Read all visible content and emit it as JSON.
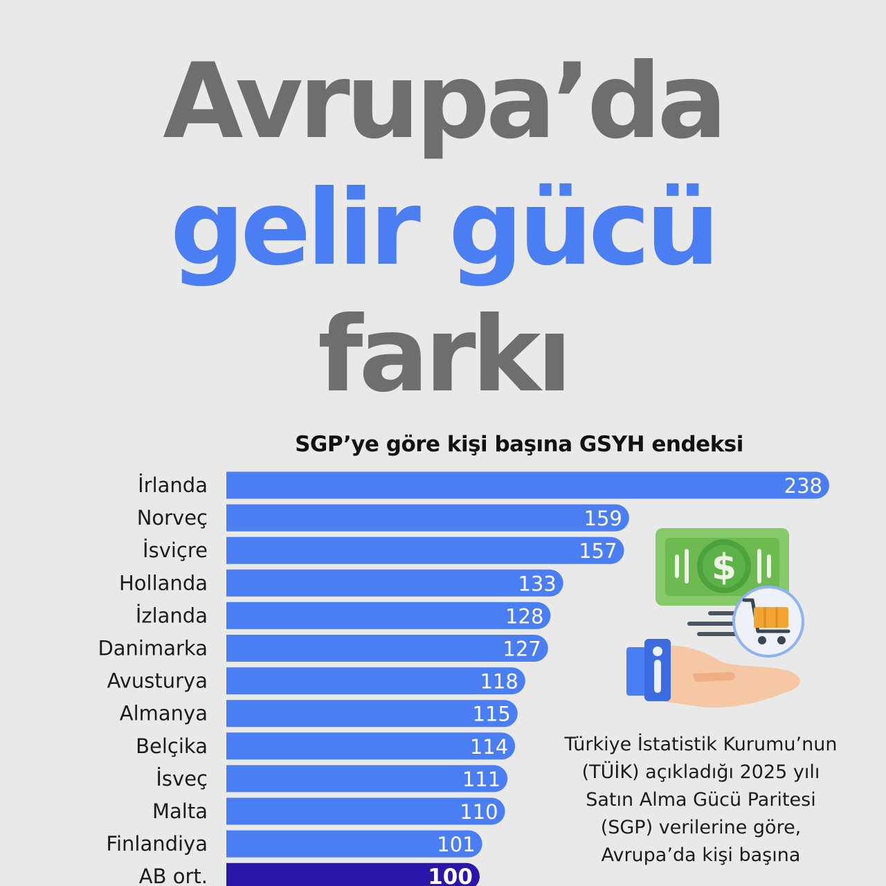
{
  "headline": {
    "line1": "Avrupa’da",
    "line2": "gelir gücü",
    "line3": "farkı"
  },
  "colors": {
    "bar": "#4a7ef2",
    "highlight_bar": "#2a16a8",
    "title_gray": "#6e6e6e",
    "title_blue": "#4a7ef2",
    "background": "#e9e9e9"
  },
  "chart_data": {
    "type": "bar",
    "orientation": "horizontal",
    "title": "SGP’ye göre kişi başına GSYH endeksi",
    "categories": [
      "İrlanda",
      "Norveç",
      "İsviçre",
      "Hollanda",
      "İzlanda",
      "Danimarka",
      "Avusturya",
      "Almanya",
      "Belçika",
      "İsveç",
      "Malta",
      "Finlandiya",
      "AB ort."
    ],
    "values": [
      238,
      159,
      157,
      133,
      128,
      127,
      118,
      115,
      114,
      111,
      110,
      101,
      100
    ],
    "highlight": "AB ort.",
    "xlim": [
      0,
      238
    ],
    "grid": false
  },
  "illustration": {
    "icon_names": [
      "banknote-icon",
      "dollar-icon",
      "shopping-cart-icon",
      "open-hand-icon"
    ]
  },
  "caption": "Türkiye İstatistik Kurumu’nun (TÜİK) açıkladığı 2025 yılı Satın Alma Gücü Paritesi (SGP) verilerine göre, Avrupa’da kişi başına"
}
